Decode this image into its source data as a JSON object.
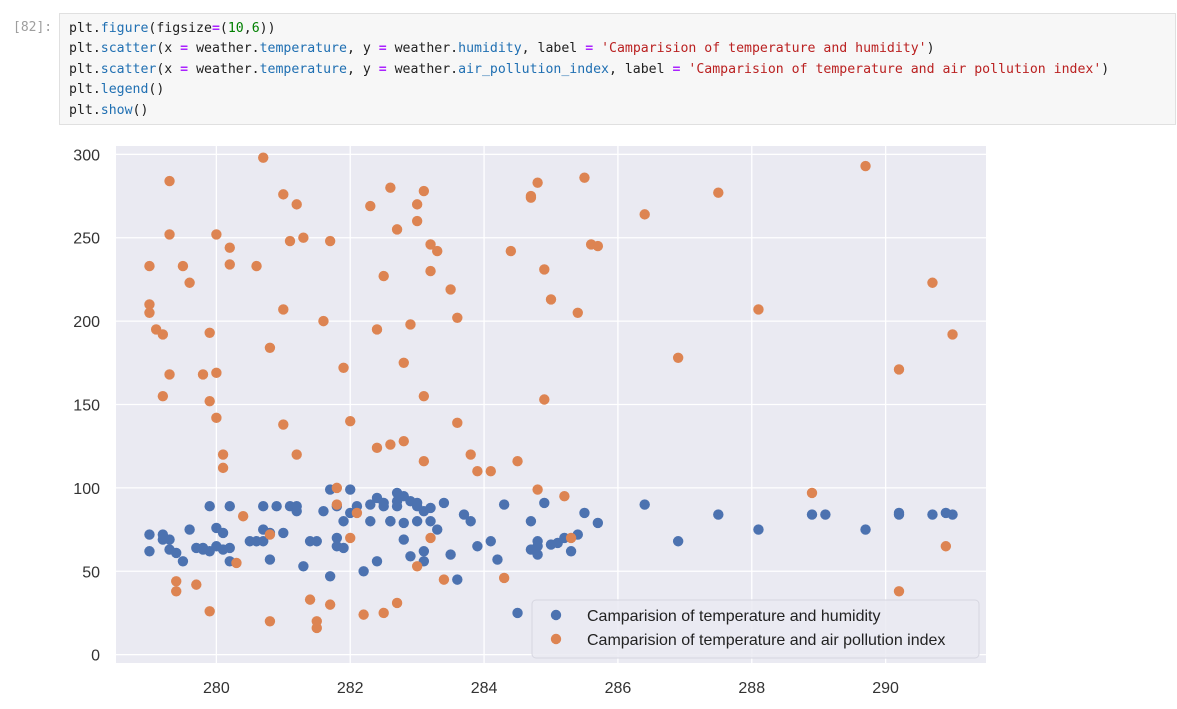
{
  "cell": {
    "prompt": "[82]:",
    "lines": [
      [
        {
          "t": "plt.",
          "c": "tok-attr"
        },
        {
          "t": "figure",
          "c": "tok-fn"
        },
        {
          "t": "(figsize",
          "c": "tok-attr"
        },
        {
          "t": "=",
          "c": "tok-op"
        },
        {
          "t": "(",
          "c": "tok-attr"
        },
        {
          "t": "10",
          "c": "tok-num"
        },
        {
          "t": ",",
          "c": "tok-attr"
        },
        {
          "t": "6",
          "c": "tok-num"
        },
        {
          "t": "))",
          "c": "tok-attr"
        }
      ],
      [
        {
          "t": "plt.",
          "c": "tok-attr"
        },
        {
          "t": "scatter",
          "c": "tok-fn"
        },
        {
          "t": "(x ",
          "c": "tok-attr"
        },
        {
          "t": "=",
          "c": "tok-op"
        },
        {
          "t": " weather.",
          "c": "tok-attr"
        },
        {
          "t": "temperature",
          "c": "tok-fn"
        },
        {
          "t": ", y ",
          "c": "tok-attr"
        },
        {
          "t": "=",
          "c": "tok-op"
        },
        {
          "t": " weather.",
          "c": "tok-attr"
        },
        {
          "t": "humidity",
          "c": "tok-fn"
        },
        {
          "t": ", label ",
          "c": "tok-attr"
        },
        {
          "t": "=",
          "c": "tok-op"
        },
        {
          "t": " ",
          "c": "tok-attr"
        },
        {
          "t": "'Camparision of temperature and humidity'",
          "c": "tok-str"
        },
        {
          "t": ")",
          "c": "tok-attr"
        }
      ],
      [
        {
          "t": "plt.",
          "c": "tok-attr"
        },
        {
          "t": "scatter",
          "c": "tok-fn"
        },
        {
          "t": "(x ",
          "c": "tok-attr"
        },
        {
          "t": "=",
          "c": "tok-op"
        },
        {
          "t": " weather.",
          "c": "tok-attr"
        },
        {
          "t": "temperature",
          "c": "tok-fn"
        },
        {
          "t": ", y ",
          "c": "tok-attr"
        },
        {
          "t": "=",
          "c": "tok-op"
        },
        {
          "t": " weather.",
          "c": "tok-attr"
        },
        {
          "t": "air_pollution_index",
          "c": "tok-fn"
        },
        {
          "t": ", label ",
          "c": "tok-attr"
        },
        {
          "t": "=",
          "c": "tok-op"
        },
        {
          "t": " ",
          "c": "tok-attr"
        },
        {
          "t": "'Camparision of temperature and air pollution index'",
          "c": "tok-str"
        },
        {
          "t": ")",
          "c": "tok-attr"
        }
      ],
      [
        {
          "t": "plt.",
          "c": "tok-attr"
        },
        {
          "t": "legend",
          "c": "tok-fn"
        },
        {
          "t": "()",
          "c": "tok-attr"
        }
      ],
      [
        {
          "t": "plt.",
          "c": "tok-attr"
        },
        {
          "t": "show",
          "c": "tok-fn"
        },
        {
          "t": "()",
          "c": "tok-attr"
        }
      ]
    ]
  },
  "colors": {
    "plot_bg": "#eaeaf2",
    "grid": "#ffffff",
    "humidity": "#4c72b0",
    "pollution": "#dd8452",
    "tick_text": "#333333"
  },
  "chart_data": {
    "type": "scatter",
    "xlim": [
      278.5,
      291.5
    ],
    "ylim": [
      -5,
      305
    ],
    "xticks": [
      280,
      282,
      284,
      286,
      288,
      290
    ],
    "yticks": [
      0,
      50,
      100,
      150,
      200,
      250,
      300
    ],
    "grid": true,
    "legend_position": "lower right",
    "series": [
      {
        "name": "Camparision of temperature and humidity",
        "color": "#4c72b0",
        "x": [
          279.0,
          279.0,
          279.2,
          279.2,
          279.3,
          279.3,
          279.4,
          279.5,
          279.6,
          279.7,
          279.8,
          279.8,
          279.9,
          279.9,
          280.0,
          280.0,
          280.1,
          280.1,
          280.2,
          280.2,
          280.2,
          280.5,
          280.6,
          280.7,
          280.7,
          280.7,
          280.8,
          280.8,
          280.9,
          281.0,
          281.1,
          281.2,
          281.2,
          281.3,
          281.4,
          281.5,
          281.6,
          281.7,
          281.7,
          281.8,
          281.8,
          281.8,
          281.9,
          281.9,
          282.0,
          282.0,
          282.1,
          282.2,
          282.3,
          282.3,
          282.4,
          282.4,
          282.5,
          282.5,
          282.6,
          282.6,
          282.7,
          282.7,
          282.7,
          282.8,
          282.8,
          282.8,
          282.9,
          282.9,
          283.0,
          283.0,
          283.0,
          283.1,
          283.1,
          283.1,
          283.2,
          283.2,
          283.3,
          283.4,
          283.5,
          283.6,
          283.7,
          283.8,
          283.9,
          284.1,
          284.2,
          284.3,
          284.5,
          284.7,
          284.7,
          284.8,
          284.8,
          284.8,
          284.9,
          285.0,
          285.1,
          285.2,
          285.3,
          285.4,
          285.5,
          285.7,
          286.4,
          286.9,
          287.5,
          288.1,
          288.9,
          289.1,
          289.7,
          290.2,
          290.2,
          290.7,
          290.9,
          291.0
        ],
        "y": [
          62,
          72,
          69,
          72,
          63,
          69,
          61,
          56,
          75,
          64,
          63,
          64,
          62,
          89,
          76,
          65,
          63,
          73,
          56,
          89,
          64,
          68,
          68,
          75,
          68,
          89,
          73,
          57,
          89,
          73,
          89,
          89,
          86,
          53,
          68,
          68,
          86,
          99,
          47,
          89,
          70,
          65,
          80,
          64,
          99,
          85,
          89,
          50,
          80,
          90,
          56,
          94,
          91,
          89,
          80,
          80,
          97,
          89,
          92,
          69,
          79,
          95,
          59,
          92,
          91,
          89,
          80,
          56,
          62,
          86,
          88,
          80,
          75,
          91,
          60,
          45,
          84,
          80,
          65,
          68,
          57,
          90,
          25,
          80,
          63,
          60,
          65,
          68,
          91,
          66,
          67,
          70,
          62,
          72,
          85,
          79,
          90,
          68,
          84,
          75,
          84,
          84,
          75,
          85,
          84,
          84,
          85,
          84
        ],
        "radius": 5.2
      },
      {
        "name": "Camparision of temperature and air pollution index",
        "color": "#dd8452",
        "x": [
          279.0,
          279.0,
          279.0,
          279.1,
          279.2,
          279.2,
          279.3,
          279.3,
          279.3,
          279.4,
          279.4,
          279.5,
          279.6,
          279.7,
          279.8,
          279.9,
          279.9,
          279.9,
          280.0,
          280.0,
          280.0,
          280.1,
          280.1,
          280.2,
          280.2,
          280.3,
          280.4,
          280.6,
          280.7,
          280.8,
          280.8,
          280.8,
          281.0,
          281.0,
          281.0,
          281.1,
          281.2,
          281.2,
          281.3,
          281.4,
          281.5,
          281.5,
          281.6,
          281.7,
          281.7,
          281.8,
          281.8,
          281.9,
          282.0,
          282.0,
          282.1,
          282.2,
          282.3,
          282.4,
          282.4,
          282.5,
          282.5,
          282.6,
          282.6,
          282.7,
          282.7,
          282.8,
          282.8,
          282.9,
          283.0,
          283.0,
          283.0,
          283.1,
          283.1,
          283.1,
          283.2,
          283.2,
          283.2,
          283.3,
          283.4,
          283.5,
          283.6,
          283.6,
          283.8,
          283.9,
          284.1,
          284.3,
          284.4,
          284.5,
          284.7,
          284.7,
          284.8,
          284.8,
          284.9,
          284.9,
          285.0,
          285.2,
          285.3,
          285.4,
          285.5,
          285.6,
          285.7,
          286.4,
          286.9,
          287.5,
          288.1,
          288.9,
          289.7,
          290.2,
          290.2,
          290.7,
          290.9,
          291.0
        ],
        "y": [
          233,
          210,
          205,
          195,
          155,
          192,
          284,
          252,
          168,
          44,
          38,
          233,
          223,
          42,
          168,
          152,
          26,
          193,
          252,
          142,
          169,
          112,
          120,
          244,
          234,
          55,
          83,
          233,
          298,
          184,
          20,
          72,
          276,
          207,
          138,
          248,
          120,
          270,
          250,
          33,
          16,
          20,
          200,
          30,
          248,
          90,
          100,
          172,
          70,
          140,
          85,
          24,
          269,
          124,
          195,
          227,
          25,
          280,
          126,
          255,
          31,
          128,
          175,
          198,
          260,
          270,
          53,
          116,
          155,
          278,
          230,
          246,
          70,
          242,
          45,
          219,
          139,
          202,
          120,
          110,
          110,
          46,
          242,
          116,
          274,
          275,
          283,
          99,
          231,
          153,
          213,
          95,
          70,
          205,
          286,
          246,
          245,
          264,
          178,
          277,
          207,
          97,
          293,
          171,
          38,
          223,
          65,
          192
        ],
        "radius": 5.2
      }
    ]
  }
}
